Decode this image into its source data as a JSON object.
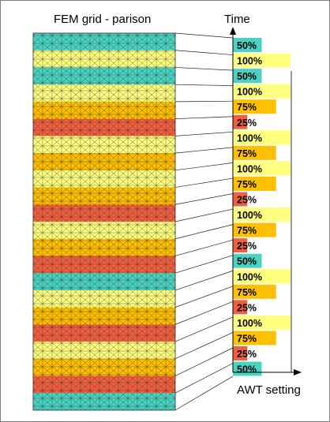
{
  "title": "FEM grid - parison",
  "time_label": "Time",
  "awt_label": "AWT setting",
  "colors": {
    "c50": "#4ad3c0",
    "c100": "#ffff80",
    "c75": "#ffc000",
    "c25": "#f06040",
    "mesh": "#202020"
  },
  "settings": [
    {
      "label": "50%",
      "level": 50
    },
    {
      "label": "100%",
      "level": 100
    },
    {
      "label": "50%",
      "level": 50
    },
    {
      "label": "100%",
      "level": 100
    },
    {
      "label": "75%",
      "level": 75
    },
    {
      "label": "25%",
      "level": 25
    },
    {
      "label": "100%",
      "level": 100
    },
    {
      "label": "75%",
      "level": 75
    },
    {
      "label": "100%",
      "level": 100
    },
    {
      "label": "75%",
      "level": 75
    },
    {
      "label": "25%",
      "level": 25
    },
    {
      "label": "100%",
      "level": 100
    },
    {
      "label": "75%",
      "level": 75
    },
    {
      "label": "25%",
      "level": 25
    },
    {
      "label": "50%",
      "level": 50
    },
    {
      "label": "100%",
      "level": 100
    },
    {
      "label": "75%",
      "level": 75
    },
    {
      "label": "25%",
      "level": 25
    },
    {
      "label": "100%",
      "level": 100
    },
    {
      "label": "75%",
      "level": 75
    },
    {
      "label": "25%",
      "level": 25
    },
    {
      "label": "50%",
      "level": 50
    }
  ],
  "parison_bands": [
    {
      "level": 50
    },
    {
      "level": 100
    },
    {
      "level": 50
    },
    {
      "level": 100
    },
    {
      "level": 75
    },
    {
      "level": 25
    },
    {
      "level": 100
    },
    {
      "level": 75
    },
    {
      "level": 100
    },
    {
      "level": 75
    },
    {
      "level": 25
    },
    {
      "level": 100
    },
    {
      "level": 75
    },
    {
      "level": 25
    },
    {
      "level": 50
    },
    {
      "level": 100
    },
    {
      "level": 75
    },
    {
      "level": 25
    },
    {
      "level": 100
    },
    {
      "level": 75
    },
    {
      "level": 25
    },
    {
      "level": 50
    }
  ]
}
